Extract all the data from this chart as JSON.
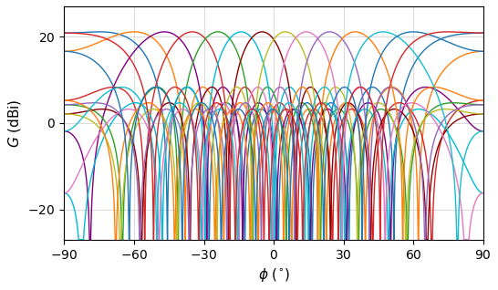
{
  "title": "",
  "xlabel": "$\\phi$ ($^{\\circ}$)",
  "ylabel": "$G$ (dBi)",
  "xlim": [
    -90,
    90
  ],
  "ylim": [
    -27,
    27
  ],
  "xticks": [
    -90,
    -60,
    -30,
    0,
    30,
    60,
    90
  ],
  "yticks": [
    -20,
    0,
    20
  ],
  "N": 8,
  "steering_angles_deg": [
    -75,
    -60,
    -47,
    -35,
    -24,
    -14,
    -5,
    5,
    14,
    24,
    35,
    47,
    60,
    75
  ],
  "colors": [
    "#1f77b4",
    "#ff7f0e",
    "#800080",
    "#d62728",
    "#2ca02c",
    "#17becf",
    "#8B0000",
    "#bcbd22",
    "#e377c2",
    "#9467bd",
    "#ff7f0e",
    "#2ca02c",
    "#1f77b4",
    "#d62728"
  ],
  "background_color": "#ffffff",
  "grid": true,
  "linewidth": 1.0,
  "clip_floor": -27,
  "peak_gain_dBi": 21.1
}
